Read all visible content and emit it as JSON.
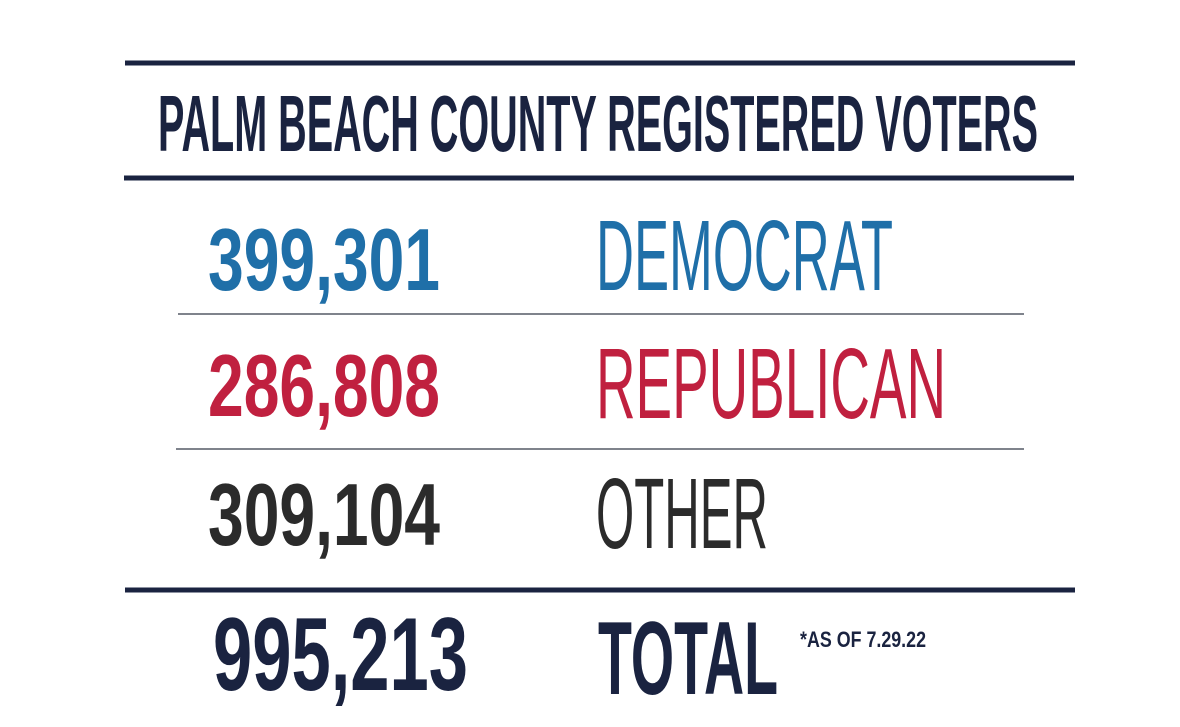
{
  "header": {
    "title": "PALM BEACH COUNTY REGISTERED VOTERS"
  },
  "table": {
    "rows": [
      [
        "399,301",
        "DEMOCRAT"
      ],
      [
        "286,808",
        "REPUBLICAN"
      ],
      [
        "309,104",
        "OTHER"
      ]
    ],
    "total": [
      "995,213",
      "TOTAL"
    ],
    "note": "*AS OF  7.29.22"
  }
}
